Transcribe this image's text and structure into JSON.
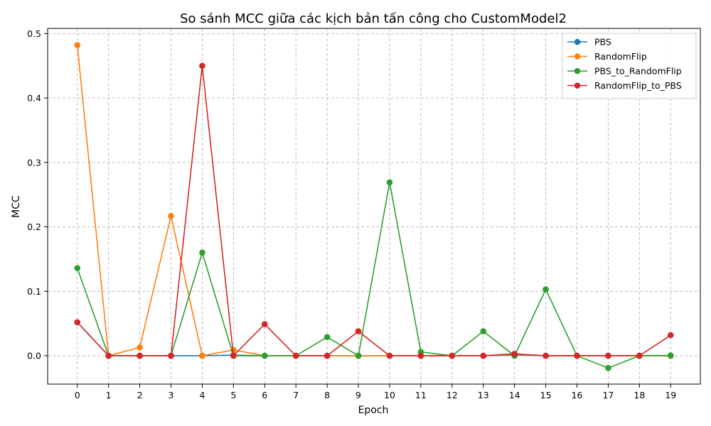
{
  "chart_data": {
    "type": "line",
    "title": "So sánh MCC giữa các kịch bản tấn công cho CustomModel2",
    "xlabel": "Epoch",
    "ylabel": "MCC",
    "x": [
      0,
      1,
      2,
      3,
      4,
      5,
      6,
      7,
      8,
      9,
      10,
      11,
      12,
      13,
      14,
      15,
      16,
      17,
      18,
      19
    ],
    "xlim": [
      -0.95,
      19.95
    ],
    "ylim": [
      -0.044,
      0.508
    ],
    "yticks": [
      0.0,
      0.1,
      0.2,
      0.3,
      0.4,
      0.5
    ],
    "ytick_labels": [
      "0.0",
      "0.1",
      "0.2",
      "0.3",
      "0.4",
      "0.5"
    ],
    "xtick_labels": [
      "0",
      "1",
      "2",
      "3",
      "4",
      "5",
      "6",
      "7",
      "8",
      "9",
      "10",
      "11",
      "12",
      "13",
      "14",
      "15",
      "16",
      "17",
      "18",
      "19"
    ],
    "grid": true,
    "legend_position": "top-right",
    "series": [
      {
        "name": "PBS",
        "color": "#1f77b4",
        "values": [
          0.052,
          0,
          0,
          0,
          0,
          0.001,
          0,
          0,
          0,
          0,
          0,
          0,
          0,
          0,
          0.001,
          0,
          0,
          0,
          0,
          0
        ]
      },
      {
        "name": "RandomFlip",
        "color": "#ff7f0e",
        "values": [
          0.482,
          0,
          0.013,
          0.217,
          0,
          0.009,
          0,
          0,
          0,
          0,
          0,
          0,
          0,
          0,
          0.002,
          0,
          0,
          0,
          0,
          0
        ]
      },
      {
        "name": "PBS_to_RandomFlip",
        "color": "#2ca02c",
        "values": [
          0.136,
          0,
          0,
          0,
          0.16,
          0,
          0,
          0,
          0.029,
          0,
          0.269,
          0.006,
          0,
          0.038,
          0,
          0.103,
          0,
          -0.019,
          0,
          0.0005
        ]
      },
      {
        "name": "RandomFlip_to_PBS",
        "color": "#d62728",
        "values": [
          0.052,
          0,
          0,
          0,
          0.45,
          0,
          0.049,
          0,
          0,
          0.038,
          0,
          0,
          0,
          0,
          0.003,
          0,
          0,
          0,
          0,
          0.032
        ]
      }
    ]
  }
}
